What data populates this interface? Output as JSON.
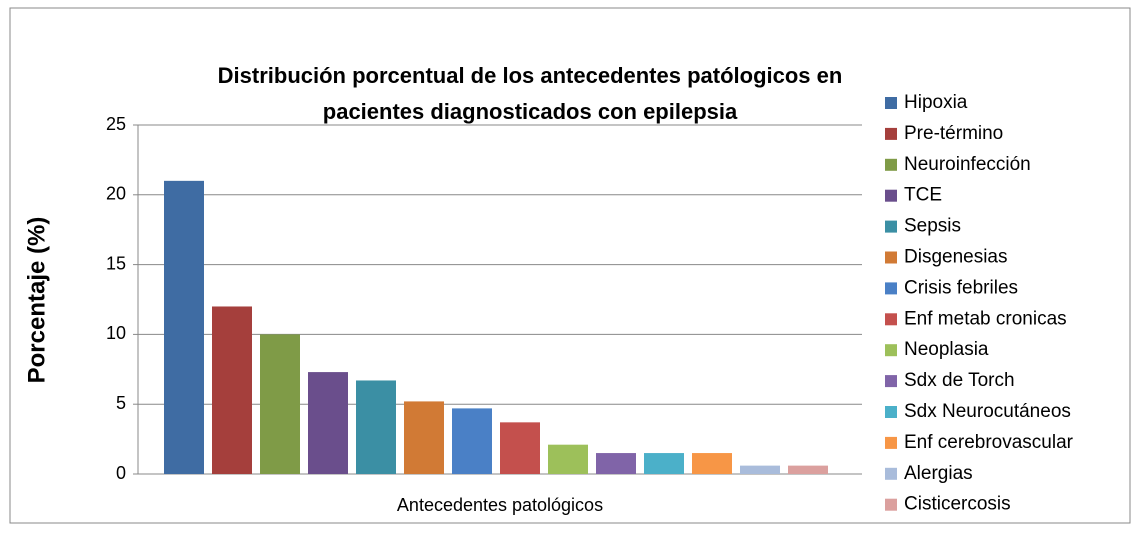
{
  "chart_data": {
    "type": "bar",
    "title": [
      "Distribución porcentual  de los antecedentes patólogicos en",
      "pacientes diagnosticados con epilepsia"
    ],
    "x_label": "Antecedentes patológicos",
    "y_label": "Porcentaje (%)",
    "categories": [
      "Antecedentes patológicos"
    ],
    "series": [
      {
        "name": "Hipoxia",
        "color": "#3f6ca3",
        "values": [
          21
        ]
      },
      {
        "name": "Pre-término",
        "color": "#a53f3c",
        "values": [
          12
        ]
      },
      {
        "name": "Neuroinfección",
        "color": "#7f9b47",
        "values": [
          10
        ]
      },
      {
        "name": "TCE",
        "color": "#6a4e8c",
        "values": [
          7.3
        ]
      },
      {
        "name": "Sepsis",
        "color": "#3b8fa4",
        "values": [
          6.7
        ]
      },
      {
        "name": "Disgenesias",
        "color": "#d17a35",
        "values": [
          5.2
        ]
      },
      {
        "name": "Crisis febriles",
        "color": "#4a80c6",
        "values": [
          4.7
        ]
      },
      {
        "name": "Enf metab cronicas",
        "color": "#c4504d",
        "values": [
          3.7
        ]
      },
      {
        "name": "Neoplasia",
        "color": "#9dc05a",
        "values": [
          2.1
        ]
      },
      {
        "name": "Sdx de Torch",
        "color": "#8064a8",
        "values": [
          1.5
        ]
      },
      {
        "name": "Sdx Neurocutáneos",
        "color": "#4bb0c9",
        "values": [
          1.5
        ]
      },
      {
        "name": "Enf cerebrovascular",
        "color": "#f79646",
        "values": [
          1.5
        ]
      },
      {
        "name": "Alergias",
        "color": "#a9bcdb",
        "values": [
          0.6
        ]
      },
      {
        "name": "Cisticercosis",
        "color": "#dba09e",
        "values": [
          0.6
        ]
      }
    ],
    "ylim": [
      0,
      25
    ],
    "yticks": [
      0,
      5,
      10,
      15,
      20,
      25
    ],
    "grid": true,
    "legend": "right"
  }
}
